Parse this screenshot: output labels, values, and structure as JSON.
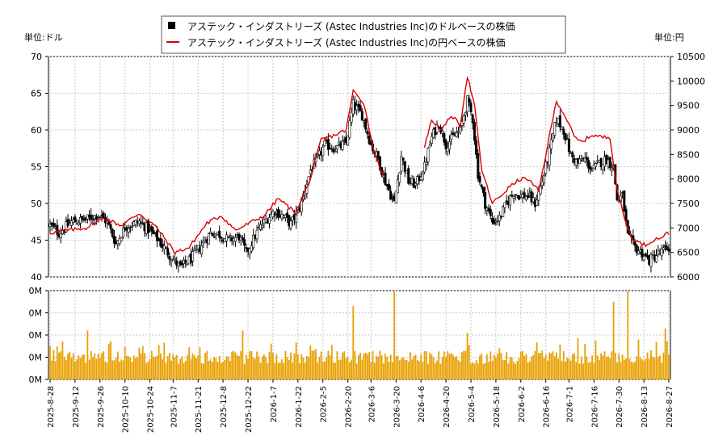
{
  "chart_data": [
    {
      "type": "candlestick+line",
      "legend": {
        "placement": "top-center",
        "entries": [
          {
            "label": "アステック・インダストリーズ (Astec Industries Inc)のドルベースの株価",
            "symbol": "square",
            "color": "#000000"
          },
          {
            "label": "アステック・インダストリーズ (Astec Industries Inc)の円ベースの株価",
            "symbol": "line",
            "color": "#dd0000"
          }
        ]
      },
      "left_unit_label": "単位:ドル",
      "right_unit_label": "単位:円",
      "left_axis": {
        "range": [
          40,
          70
        ],
        "ticks": [
          "40",
          "45",
          "50",
          "55",
          "60",
          "65",
          "70"
        ]
      },
      "right_axis": {
        "range": [
          6000,
          10500
        ],
        "ticks": [
          "6000",
          "6500",
          "7000",
          "7500",
          "8000",
          "8500",
          "9000",
          "9500",
          "10000",
          "10500"
        ]
      },
      "grid": true,
      "x_ticks": [
        "2025-8-28",
        "2025-9-12",
        "2025-9-26",
        "2025-10-10",
        "2025-10-24",
        "2025-11-7",
        "2025-11-21",
        "2025-12-8",
        "2025-12-22",
        "2026-1-7",
        "2026-1-22",
        "2026-2-5",
        "2026-2-20",
        "2026-3-6",
        "2026-3-20",
        "2026-4-6",
        "2026-4-20",
        "2026-5-4",
        "2026-5-18",
        "2026-6-2",
        "2026-6-16",
        "2026-7-1",
        "2026-7-16",
        "2026-7-30",
        "2026-8-13",
        "2026-8-27"
      ],
      "usd_close_keypoints": [
        [
          0,
          47.0
        ],
        [
          5,
          46.0
        ],
        [
          12,
          47.5
        ],
        [
          20,
          47.8
        ],
        [
          27,
          48.5
        ],
        [
          32,
          47.5
        ],
        [
          37,
          44.5
        ],
        [
          42,
          46.8
        ],
        [
          50,
          47.5
        ],
        [
          55,
          46.5
        ],
        [
          60,
          45.2
        ],
        [
          67,
          43.0
        ],
        [
          73,
          41.2
        ],
        [
          79,
          42.5
        ],
        [
          84,
          44.0
        ],
        [
          90,
          46.0
        ],
        [
          95,
          45.8
        ],
        [
          100,
          45.0
        ],
        [
          106,
          45.5
        ],
        [
          110,
          43.3
        ],
        [
          117,
          46.5
        ],
        [
          122,
          48.0
        ],
        [
          126,
          49.0
        ],
        [
          131,
          48.2
        ],
        [
          135,
          47.2
        ],
        [
          140,
          49.5
        ],
        [
          146,
          54.5
        ],
        [
          150,
          56.0
        ],
        [
          154,
          58.0
        ],
        [
          160,
          57.5
        ],
        [
          166,
          58.2
        ],
        [
          170,
          63.5
        ],
        [
          175,
          62.0
        ],
        [
          180,
          58.0
        ],
        [
          184,
          56.0
        ],
        [
          188,
          53.0
        ],
        [
          193,
          50.0
        ],
        [
          197,
          56.5
        ],
        [
          201,
          53.0
        ],
        [
          205,
          52.5
        ],
        [
          210,
          55.0
        ],
        [
          214,
          59.0
        ],
        [
          218,
          61.0
        ],
        [
          222,
          58.0
        ],
        [
          226,
          59.0
        ],
        [
          230,
          60.0
        ],
        [
          234,
          64.0
        ],
        [
          237,
          61.5
        ],
        [
          240,
          54.0
        ],
        [
          244,
          50.0
        ],
        [
          248,
          47.5
        ],
        [
          252,
          48.0
        ],
        [
          256,
          50.0
        ],
        [
          260,
          51.5
        ],
        [
          264,
          51.0
        ],
        [
          268,
          51.0
        ],
        [
          272,
          50.0
        ],
        [
          276,
          53.0
        ],
        [
          280,
          57.0
        ],
        [
          284,
          61.5
        ],
        [
          288,
          60.0
        ],
        [
          292,
          56.5
        ],
        [
          296,
          55.5
        ],
        [
          300,
          56.0
        ],
        [
          304,
          54.5
        ],
        [
          308,
          55.5
        ],
        [
          312,
          56.0
        ],
        [
          316,
          55.0
        ],
        [
          318,
          50.5
        ],
        [
          321,
          51.0
        ],
        [
          324,
          45.5
        ],
        [
          328,
          44.0
        ],
        [
          332,
          43.2
        ],
        [
          336,
          42.2
        ],
        [
          340,
          43.0
        ],
        [
          344,
          43.5
        ],
        [
          347,
          44.0
        ]
      ],
      "jpy_keypoints": [
        [
          0,
          6900
        ],
        [
          10,
          6950
        ],
        [
          20,
          7000
        ],
        [
          30,
          7200
        ],
        [
          40,
          7050
        ],
        [
          50,
          7300
        ],
        [
          60,
          7000
        ],
        [
          70,
          6500
        ],
        [
          78,
          6600
        ],
        [
          88,
          7100
        ],
        [
          96,
          7250
        ],
        [
          104,
          6950
        ],
        [
          112,
          7100
        ],
        [
          120,
          7250
        ],
        [
          128,
          7600
        ],
        [
          138,
          7300
        ],
        [
          146,
          8000
        ],
        [
          152,
          8800
        ],
        [
          160,
          8900
        ],
        [
          166,
          9000
        ],
        [
          170,
          9800
        ],
        [
          176,
          9550
        ],
        [
          182,
          8500
        ],
        [
          188,
          8000
        ],
        [
          193,
          7750
        ],
        [
          198,
          8750
        ],
        [
          203,
          8100
        ],
        [
          206,
          8150
        ],
        [
          214,
          9200
        ],
        [
          220,
          9000
        ],
        [
          225,
          9300
        ],
        [
          230,
          9100
        ],
        [
          234,
          10100
        ],
        [
          238,
          9500
        ],
        [
          242,
          8200
        ],
        [
          248,
          7500
        ],
        [
          254,
          7700
        ],
        [
          258,
          7850
        ],
        [
          264,
          8000
        ],
        [
          268,
          8000
        ],
        [
          274,
          7750
        ],
        [
          278,
          8500
        ],
        [
          284,
          9600
        ],
        [
          290,
          9200
        ],
        [
          294,
          8850
        ],
        [
          298,
          8750
        ],
        [
          304,
          8900
        ],
        [
          310,
          8850
        ],
        [
          314,
          8850
        ],
        [
          318,
          7800
        ],
        [
          322,
          7200
        ],
        [
          326,
          6800
        ],
        [
          330,
          6700
        ],
        [
          334,
          6650
        ],
        [
          338,
          6750
        ],
        [
          342,
          6800
        ],
        [
          347,
          6900
        ]
      ],
      "jpy_gap_index": [
        188,
        210
      ],
      "volume_axis": {
        "ticks": [
          "0M",
          "0M",
          "0M",
          "0M",
          "0M"
        ]
      },
      "volume_spikes": [
        [
          0,
          1.5
        ],
        [
          4,
          1.5
        ],
        [
          21,
          2.2
        ],
        [
          67,
          1.2
        ],
        [
          108,
          2.2
        ],
        [
          170,
          3.3
        ],
        [
          193,
          5.3
        ],
        [
          234,
          2.1
        ],
        [
          300,
          1.6
        ],
        [
          316,
          3.5
        ],
        [
          324,
          5.0
        ],
        [
          330,
          1.8
        ],
        [
          345,
          2.3
        ]
      ]
    }
  ]
}
